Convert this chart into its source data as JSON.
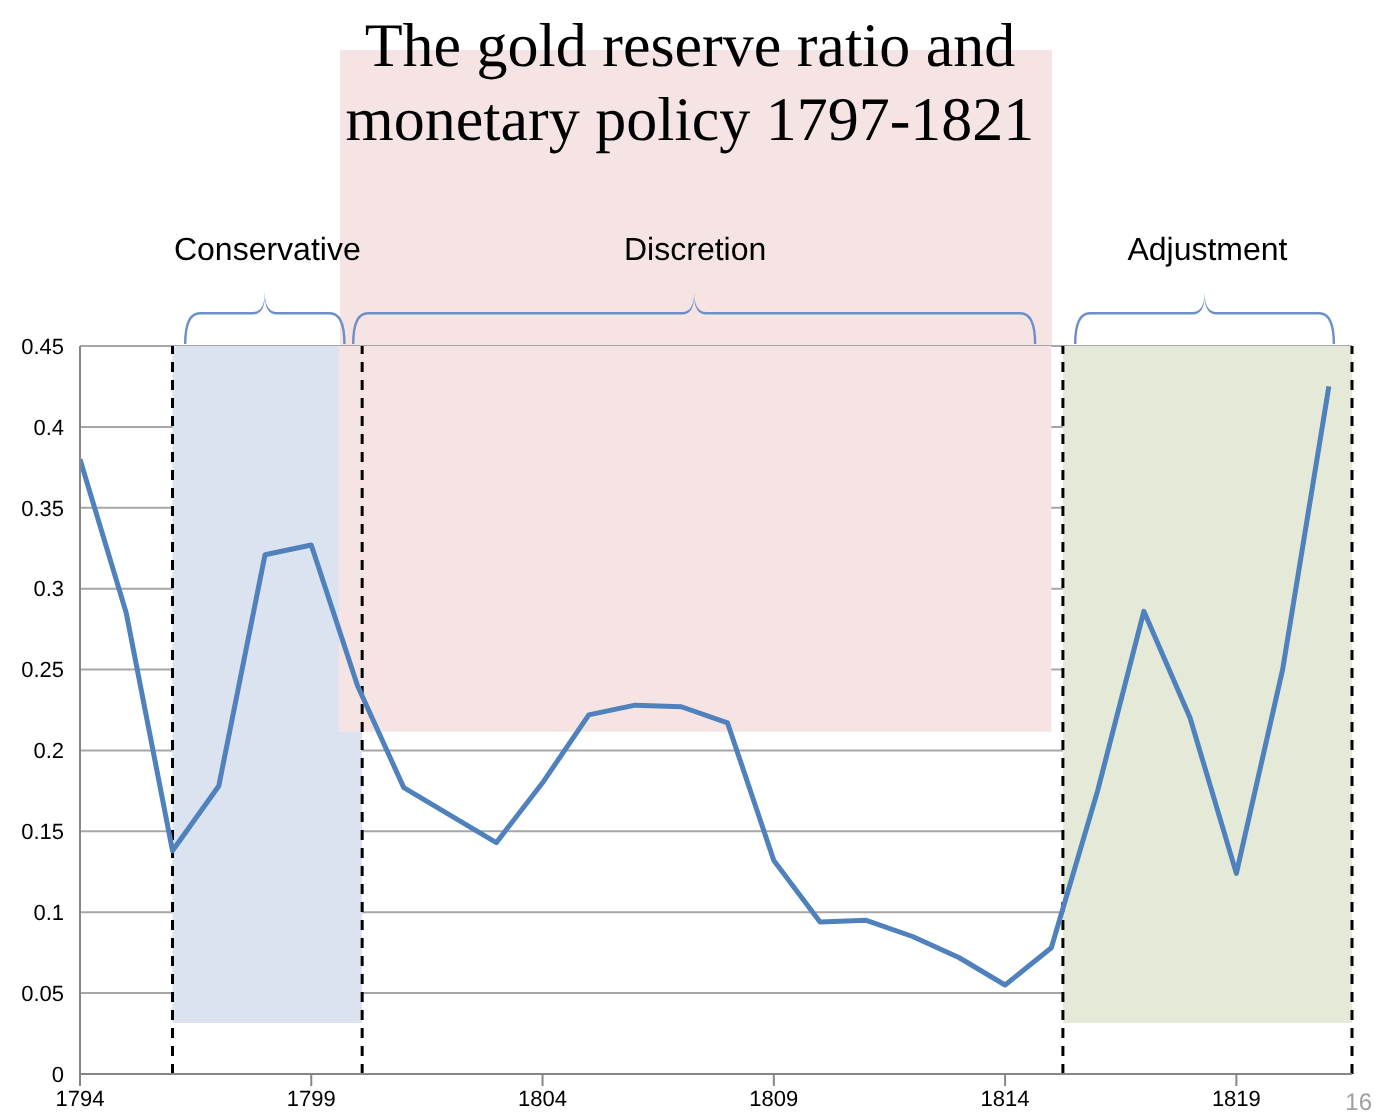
{
  "chart_data": {
    "type": "line",
    "title": "The gold reserve ratio and monetary policy 1797-1821",
    "x": [
      1794,
      1795,
      1796,
      1797,
      1798,
      1799,
      1800,
      1801,
      1802,
      1803,
      1804,
      1805,
      1806,
      1807,
      1808,
      1809,
      1810,
      1811,
      1812,
      1813,
      1814,
      1815,
      1816,
      1817,
      1818,
      1819,
      1820,
      1821
    ],
    "series": [
      {
        "color": "#4f81bd",
        "values": [
          0.38,
          0.285,
          0.138,
          0.178,
          0.321,
          0.327,
          0.24,
          0.177,
          0.16,
          0.143,
          0.18,
          0.222,
          0.228,
          0.227,
          0.217,
          0.132,
          0.094,
          0.095,
          0.085,
          0.072,
          0.055,
          0.078,
          0.175,
          0.286,
          0.22,
          0.124,
          0.25,
          0.425
        ]
      }
    ],
    "xlim": [
      1794,
      1821.5
    ],
    "xticks": [
      1794,
      1799,
      1804,
      1809,
      1814,
      1819
    ],
    "ylim": [
      0,
      0.45
    ],
    "yticks": [
      0,
      0.05,
      0.1,
      0.15,
      0.2,
      0.25,
      0.3,
      0.35,
      0.4,
      0.45
    ],
    "grid": "y",
    "marker": "none",
    "line_style": "solid",
    "legend": false,
    "bands": [
      {
        "axis": "x",
        "from": 1796,
        "to": 1800.1,
        "label": "Conservative",
        "color": "#dce3f0"
      },
      {
        "axis": "x",
        "from": 1799.6,
        "to": 1815,
        "label": "Discretion",
        "color": "#f6e4e4"
      },
      {
        "axis": "x",
        "from": 1815.25,
        "to": 1821.5,
        "label": "Adjustment",
        "color": "#e4e9d8"
      }
    ],
    "ref_lines": [
      {
        "axis": "x",
        "value": 1796,
        "color": "#000000",
        "line_style": "dashed"
      },
      {
        "axis": "x",
        "value": 1800.1,
        "color": "#000000",
        "line_style": "dashed"
      },
      {
        "axis": "x",
        "value": 1815.25,
        "color": "#000000",
        "line_style": "dashed"
      },
      {
        "axis": "x",
        "value": 1821.5,
        "color": "#000000",
        "line_style": "dashed"
      }
    ],
    "annotations": [
      "16"
    ]
  }
}
